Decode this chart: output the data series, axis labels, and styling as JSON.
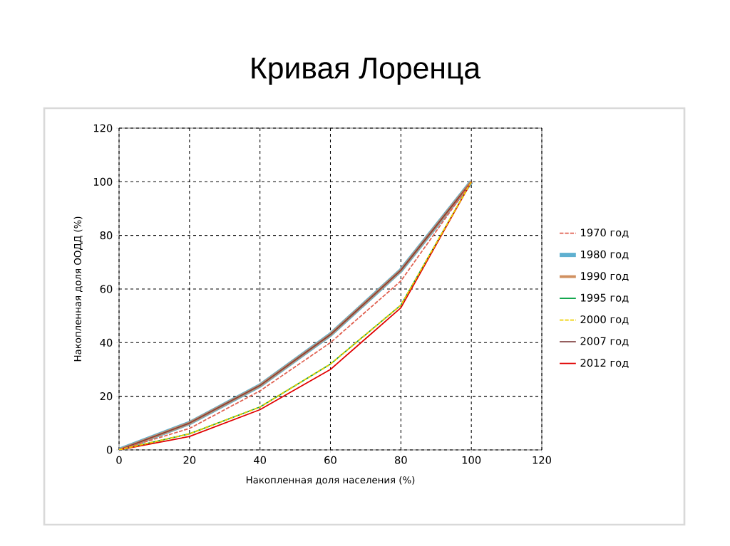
{
  "chart_data": {
    "type": "line",
    "title": "Кривая Лоренца",
    "xlabel": "Накопленная доля населения (%)",
    "ylabel": "Накопленная доля  ООДД (%)",
    "x": [
      0,
      20,
      40,
      60,
      80,
      100
    ],
    "series": [
      {
        "name": "1970 год",
        "color": "#e06050",
        "line_style": "dashed",
        "values": [
          0,
          8,
          22,
          40,
          63,
          100
        ]
      },
      {
        "name": "1980 год",
        "color": "#5fb0d0",
        "values": [
          0,
          10,
          24,
          43,
          67,
          100
        ]
      },
      {
        "name": "1990 год",
        "color": "#d09060",
        "values": [
          0,
          10,
          24,
          43,
          67,
          100
        ]
      },
      {
        "name": "1995 год",
        "color": "#00a040",
        "values": [
          0,
          6,
          16,
          32,
          54,
          100
        ]
      },
      {
        "name": "2000 год",
        "color": "#f0d000",
        "line_style": "dashed",
        "values": [
          0,
          6,
          16,
          32,
          54,
          100
        ]
      },
      {
        "name": "2007 год",
        "color": "#804040",
        "values": [
          0,
          10,
          24,
          43,
          67,
          100
        ]
      },
      {
        "name": "2012 год",
        "color": "#e00000",
        "values": [
          0,
          5,
          15,
          30,
          53,
          100
        ]
      }
    ],
    "xlim": [
      0,
      120
    ],
    "ylim": [
      0,
      120
    ],
    "xticks": [
      0,
      20,
      40,
      60,
      80,
      100,
      120
    ],
    "yticks": [
      0,
      20,
      40,
      60,
      80,
      100,
      120
    ],
    "grid": true,
    "legend": "right",
    "line_style": "solid",
    "marker": "none"
  }
}
